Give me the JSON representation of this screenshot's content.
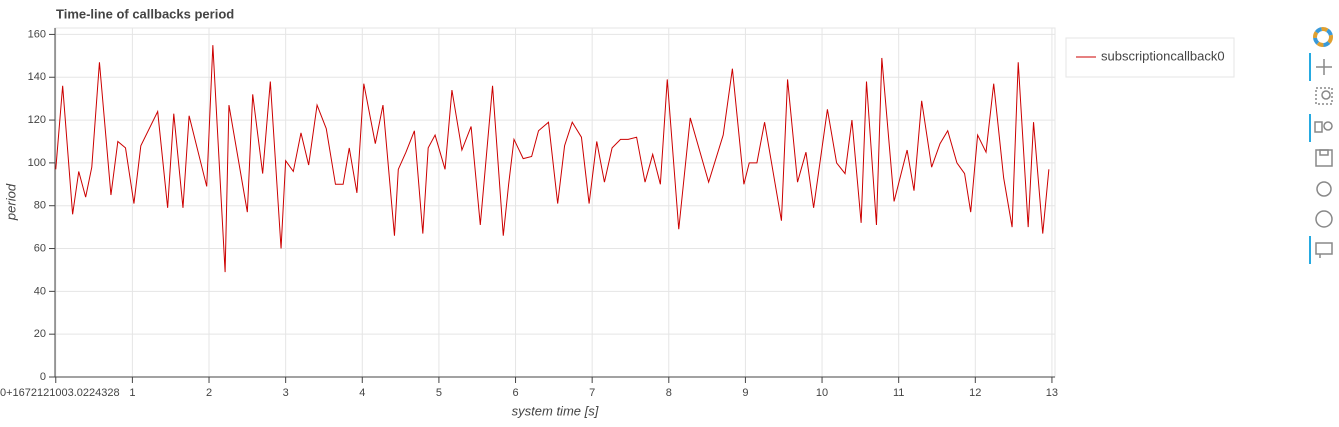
{
  "chart_data": {
    "type": "line",
    "title": "Time-line of callbacks period",
    "x_label": "system time [s]",
    "y_label": "period",
    "x": [
      0.0,
      0.09,
      0.22,
      0.3,
      0.39,
      0.47,
      0.57,
      0.72,
      0.81,
      0.91,
      1.02,
      1.11,
      1.33,
      1.46,
      1.54,
      1.66,
      1.74,
      1.97,
      2.05,
      2.21,
      2.26,
      2.5,
      2.57,
      2.7,
      2.8,
      2.94,
      3.0,
      3.1,
      3.2,
      3.3,
      3.41,
      3.53,
      3.65,
      3.75,
      3.83,
      3.93,
      4.02,
      4.17,
      4.27,
      4.42,
      4.47,
      4.57,
      4.68,
      4.79,
      4.86,
      4.95,
      5.08,
      5.17,
      5.3,
      5.42,
      5.54,
      5.7,
      5.84,
      5.91,
      5.98,
      6.1,
      6.21,
      6.3,
      6.43,
      6.55,
      6.64,
      6.74,
      6.86,
      6.96,
      7.06,
      7.16,
      7.26,
      7.37,
      7.47,
      7.58,
      7.69,
      7.79,
      7.89,
      7.98,
      8.13,
      8.28,
      8.52,
      8.71,
      8.83,
      8.98,
      9.05,
      9.15,
      9.25,
      9.47,
      9.55,
      9.68,
      9.79,
      9.89,
      10.07,
      10.19,
      10.3,
      10.39,
      10.51,
      10.58,
      10.71,
      10.78,
      10.94,
      11.11,
      11.2,
      11.3,
      11.43,
      11.54,
      11.64,
      11.76,
      11.86,
      11.94,
      12.03,
      12.14,
      12.24,
      12.37,
      12.48,
      12.56,
      12.69,
      12.76,
      12.88,
      12.96
    ],
    "series": [
      {
        "name": "subscriptioncallback0",
        "color": "#cc0000",
        "values": [
          97,
          136,
          76,
          96,
          84,
          98,
          147,
          85,
          110,
          107,
          81,
          108,
          124,
          79,
          123,
          79,
          122,
          89,
          155,
          49,
          127,
          77,
          132,
          95,
          138,
          60,
          101,
          96,
          114,
          99,
          127,
          116,
          90,
          90,
          107,
          86,
          137,
          109,
          127,
          66,
          97,
          105,
          115,
          67,
          107,
          113,
          97,
          134,
          106,
          117,
          71,
          136,
          66,
          90,
          111,
          102,
          103,
          115,
          119,
          81,
          108,
          119,
          112,
          81,
          110,
          91,
          107,
          111,
          111,
          112,
          91,
          104,
          90,
          139,
          69,
          121,
          91,
          113,
          144,
          90,
          100,
          100,
          119,
          73,
          139,
          91,
          105,
          79,
          125,
          100,
          95,
          120,
          72,
          138,
          71,
          149,
          82,
          106,
          87,
          129,
          98,
          109,
          115,
          100,
          95,
          77,
          113,
          105,
          137,
          93,
          70,
          147,
          70,
          119,
          67,
          97
        ]
      }
    ],
    "xlim": [
      -0.01,
      13.04
    ],
    "ylim": [
      0,
      163
    ],
    "xticks": [
      {
        "value": 0,
        "label": "0+1672121003.0224328"
      },
      1,
      2,
      3,
      4,
      5,
      6,
      7,
      8,
      9,
      10,
      11,
      12,
      13
    ],
    "yticks": [
      0,
      20,
      40,
      60,
      80,
      100,
      120,
      140,
      160
    ],
    "grid": true,
    "legend": "top-right"
  }
}
